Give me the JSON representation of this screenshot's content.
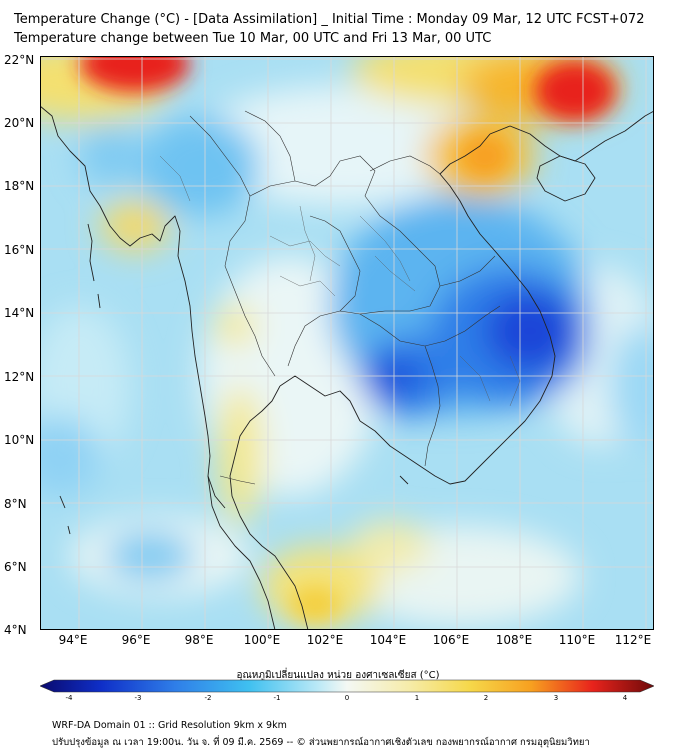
{
  "title_line1": "Temperature Change (°C) - [Data Assimilation] _ Initial Time : Monday 09 Mar, 12 UTC FCST+072",
  "title_line2": "Temperature change between Tue 10 Mar, 00 UTC and Fri 13 Mar, 00 UTC",
  "lat_labels": [
    "22°N",
    "20°N",
    "18°N",
    "16°N",
    "14°N",
    "12°N",
    "10°N",
    "8°N",
    "6°N",
    "4°N"
  ],
  "lon_labels": [
    "94°E",
    "96°E",
    "98°E",
    "100°E",
    "102°E",
    "104°E",
    "106°E",
    "108°E",
    "110°E",
    "112°E"
  ],
  "colorbar": {
    "title": "อุณหภูมิเปลี่ยนแปลง หน่วย องศาเซลเซียส (°C)",
    "ticks": [
      "-4",
      "-3",
      "-2",
      "-1",
      "0",
      "1",
      "2",
      "3",
      "4"
    ],
    "range": [
      -4,
      4
    ]
  },
  "footer_line1": "WRF-DA Domain 01 :: Grid Resolution 9km x 9km",
  "footer_line2": "ปรับปรุงข้อมูล ณ เวลา 19:00น. วัน จ. ที่ 09 มี.ค. 2569 -- © ส่วนพยากรณ์อากาศเชิงตัวเลข กองพยากรณ์อากาศ กรมอุตุนิยมวิทยา",
  "colors": {
    "cold_strong": "#1a44d8",
    "cold": "#4aa0ee",
    "cool": "#9bd8f5",
    "neutral": "#eef6f8",
    "warm": "#f4e88a",
    "hot": "#f7b52a",
    "very_hot": "#e8231c"
  }
}
